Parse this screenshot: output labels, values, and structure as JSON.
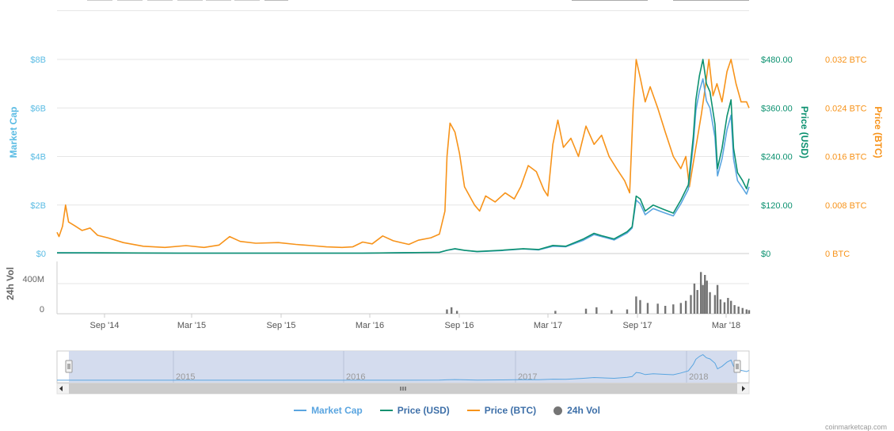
{
  "colors": {
    "market_cap": "#5aa5e0",
    "price_usd": "#0c9170",
    "price_btc": "#f7931a",
    "volume": "#757575",
    "axis_mc_label": "#5bbce4",
    "grid": "#e6e6e6",
    "navigator_fill": "#cfd8ec"
  },
  "chart_data": {
    "type": "line",
    "title": "",
    "x_ticks": [
      "Sep '14",
      "Mar '15",
      "Sep '15",
      "Mar '16",
      "Sep '16",
      "Mar '17",
      "Sep '17",
      "Mar '18"
    ],
    "y_axes": {
      "market_cap": {
        "label": "Market Cap",
        "ticks": [
          "$0",
          "$2B",
          "$4B",
          "$6B",
          "$8B"
        ],
        "range": [
          0,
          8000000000
        ]
      },
      "price_usd": {
        "label": "Price (USD)",
        "ticks": [
          "$0",
          "$120.00",
          "$240.00",
          "$360.00",
          "$480.00"
        ],
        "range": [
          0,
          480
        ]
      },
      "price_btc": {
        "label": "Price (BTC)",
        "ticks": [
          "0 BTC",
          "0.008 BTC",
          "0.016 BTC",
          "0.024 BTC",
          "0.032 BTC"
        ],
        "range": [
          0,
          0.032
        ]
      },
      "volume": {
        "label": "24h Vol",
        "ticks": [
          "0",
          "400M"
        ],
        "range": [
          0,
          800000000
        ]
      }
    },
    "x_range": [
      "2014-07-01",
      "2018-04-10"
    ],
    "series": [
      {
        "name": "Price (BTC)",
        "axis": "price_btc",
        "points": [
          [
            "2014-07-01",
            0.0035
          ],
          [
            "2014-07-05",
            0.0028
          ],
          [
            "2014-07-12",
            0.0045
          ],
          [
            "2014-07-18",
            0.008
          ],
          [
            "2014-07-24",
            0.0052
          ],
          [
            "2014-08-05",
            0.0046
          ],
          [
            "2014-08-20",
            0.0038
          ],
          [
            "2014-09-05",
            0.0042
          ],
          [
            "2014-09-20",
            0.003
          ],
          [
            "2014-10-10",
            0.0026
          ],
          [
            "2014-11-10",
            0.0018
          ],
          [
            "2014-12-20",
            0.0012
          ],
          [
            "2015-02-01",
            0.001
          ],
          [
            "2015-03-15",
            0.0013
          ],
          [
            "2015-04-20",
            0.001
          ],
          [
            "2015-05-20",
            0.0014
          ],
          [
            "2015-06-10",
            0.0028
          ],
          [
            "2015-07-01",
            0.002
          ],
          [
            "2015-08-01",
            0.0017
          ],
          [
            "2015-09-15",
            0.0018
          ],
          [
            "2015-10-20",
            0.0015
          ],
          [
            "2015-11-20",
            0.0013
          ],
          [
            "2015-12-20",
            0.0011
          ],
          [
            "2016-01-20",
            0.001
          ],
          [
            "2016-02-10",
            0.0011
          ],
          [
            "2016-03-01",
            0.0019
          ],
          [
            "2016-03-20",
            0.0016
          ],
          [
            "2016-04-10",
            0.0029
          ],
          [
            "2016-05-01",
            0.0021
          ],
          [
            "2016-06-01",
            0.0015
          ],
          [
            "2016-06-20",
            0.0022
          ],
          [
            "2016-07-15",
            0.0026
          ],
          [
            "2016-08-01",
            0.0032
          ],
          [
            "2016-08-12",
            0.007
          ],
          [
            "2016-08-16",
            0.016
          ],
          [
            "2016-08-22",
            0.0215
          ],
          [
            "2016-09-01",
            0.02
          ],
          [
            "2016-09-10",
            0.0165
          ],
          [
            "2016-09-20",
            0.011
          ],
          [
            "2016-10-10",
            0.008
          ],
          [
            "2016-10-20",
            0.007
          ],
          [
            "2016-11-01",
            0.0095
          ],
          [
            "2016-11-20",
            0.0085
          ],
          [
            "2016-12-10",
            0.01
          ],
          [
            "2016-12-28",
            0.009
          ],
          [
            "2017-01-10",
            0.011
          ],
          [
            "2017-01-25",
            0.0145
          ],
          [
            "2017-02-10",
            0.0135
          ],
          [
            "2017-02-25",
            0.0105
          ],
          [
            "2017-03-05",
            0.0095
          ],
          [
            "2017-03-15",
            0.018
          ],
          [
            "2017-03-25",
            0.022
          ],
          [
            "2017-04-05",
            0.0175
          ],
          [
            "2017-04-20",
            0.019
          ],
          [
            "2017-05-05",
            0.016
          ],
          [
            "2017-05-20",
            0.021
          ],
          [
            "2017-06-05",
            0.018
          ],
          [
            "2017-06-20",
            0.0195
          ],
          [
            "2017-07-05",
            0.016
          ],
          [
            "2017-07-20",
            0.014
          ],
          [
            "2017-08-05",
            0.012
          ],
          [
            "2017-08-15",
            0.01
          ],
          [
            "2017-08-22",
            0.024
          ],
          [
            "2017-08-28",
            0.032
          ],
          [
            "2017-09-05",
            0.029
          ],
          [
            "2017-09-15",
            0.025
          ],
          [
            "2017-09-25",
            0.0275
          ],
          [
            "2017-10-10",
            0.024
          ],
          [
            "2017-10-25",
            0.02
          ],
          [
            "2017-11-10",
            0.016
          ],
          [
            "2017-11-25",
            0.014
          ],
          [
            "2017-12-05",
            0.016
          ],
          [
            "2017-12-12",
            0.011
          ],
          [
            "2017-12-20",
            0.015
          ],
          [
            "2017-12-28",
            0.019
          ],
          [
            "2018-01-05",
            0.023
          ],
          [
            "2018-01-12",
            0.027
          ],
          [
            "2018-01-20",
            0.032
          ],
          [
            "2018-01-28",
            0.026
          ],
          [
            "2018-02-05",
            0.028
          ],
          [
            "2018-02-15",
            0.025
          ],
          [
            "2018-02-25",
            0.03
          ],
          [
            "2018-03-05",
            0.032
          ],
          [
            "2018-03-15",
            0.028
          ],
          [
            "2018-03-25",
            0.025
          ],
          [
            "2018-04-05",
            0.025
          ],
          [
            "2018-04-10",
            0.024
          ]
        ]
      },
      {
        "name": "Price (USD)",
        "axis": "price_usd",
        "points": [
          [
            "2014-07-01",
            2
          ],
          [
            "2014-09-01",
            2
          ],
          [
            "2015-03-01",
            1
          ],
          [
            "2015-09-01",
            1
          ],
          [
            "2016-03-01",
            1
          ],
          [
            "2016-08-01",
            3
          ],
          [
            "2016-08-16",
            8
          ],
          [
            "2016-09-01",
            12
          ],
          [
            "2016-09-20",
            8
          ],
          [
            "2016-10-15",
            5
          ],
          [
            "2016-12-01",
            8
          ],
          [
            "2017-01-15",
            12
          ],
          [
            "2017-02-15",
            10
          ],
          [
            "2017-03-15",
            20
          ],
          [
            "2017-04-10",
            18
          ],
          [
            "2017-05-15",
            36
          ],
          [
            "2017-06-05",
            50
          ],
          [
            "2017-06-20",
            44
          ],
          [
            "2017-07-15",
            36
          ],
          [
            "2017-08-10",
            54
          ],
          [
            "2017-08-20",
            66
          ],
          [
            "2017-08-28",
            142
          ],
          [
            "2017-09-05",
            135
          ],
          [
            "2017-09-15",
            105
          ],
          [
            "2017-10-01",
            120
          ],
          [
            "2017-10-20",
            110
          ],
          [
            "2017-11-10",
            100
          ],
          [
            "2017-11-25",
            132
          ],
          [
            "2017-12-10",
            170
          ],
          [
            "2017-12-20",
            290
          ],
          [
            "2017-12-25",
            380
          ],
          [
            "2018-01-01",
            440
          ],
          [
            "2018-01-08",
            480
          ],
          [
            "2018-01-15",
            420
          ],
          [
            "2018-01-22",
            400
          ],
          [
            "2018-02-01",
            320
          ],
          [
            "2018-02-06",
            210
          ],
          [
            "2018-02-15",
            260
          ],
          [
            "2018-02-25",
            340
          ],
          [
            "2018-03-05",
            380
          ],
          [
            "2018-03-10",
            260
          ],
          [
            "2018-03-18",
            200
          ],
          [
            "2018-03-28",
            180
          ],
          [
            "2018-04-05",
            160
          ],
          [
            "2018-04-10",
            185
          ]
        ]
      },
      {
        "name": "Market Cap",
        "axis": "market_cap",
        "points": [
          [
            "2014-07-01",
            30000000
          ],
          [
            "2015-03-01",
            15000000
          ],
          [
            "2016-03-01",
            15000000
          ],
          [
            "2016-08-01",
            45000000
          ],
          [
            "2016-08-16",
            130000000
          ],
          [
            "2016-09-01",
            190000000
          ],
          [
            "2016-09-20",
            130000000
          ],
          [
            "2016-10-15",
            75000000
          ],
          [
            "2016-12-01",
            120000000
          ],
          [
            "2017-01-15",
            190000000
          ],
          [
            "2017-02-15",
            150000000
          ],
          [
            "2017-03-15",
            300000000
          ],
          [
            "2017-04-10",
            280000000
          ],
          [
            "2017-05-15",
            550000000
          ],
          [
            "2017-06-05",
            780000000
          ],
          [
            "2017-06-20",
            700000000
          ],
          [
            "2017-07-15",
            560000000
          ],
          [
            "2017-08-10",
            850000000
          ],
          [
            "2017-08-20",
            1050000000
          ],
          [
            "2017-08-28",
            2200000000
          ],
          [
            "2017-09-05",
            2050000000
          ],
          [
            "2017-09-15",
            1600000000
          ],
          [
            "2017-10-01",
            1850000000
          ],
          [
            "2017-10-20",
            1700000000
          ],
          [
            "2017-11-10",
            1550000000
          ],
          [
            "2017-11-25",
            2050000000
          ],
          [
            "2017-12-10",
            2650000000
          ],
          [
            "2017-12-20",
            4500000000
          ],
          [
            "2017-12-25",
            5900000000
          ],
          [
            "2018-01-01",
            6700000000
          ],
          [
            "2018-01-08",
            7200000000
          ],
          [
            "2018-01-15",
            6300000000
          ],
          [
            "2018-01-22",
            6000000000
          ],
          [
            "2018-02-01",
            4800000000
          ],
          [
            "2018-02-06",
            3200000000
          ],
          [
            "2018-02-15",
            3900000000
          ],
          [
            "2018-02-25",
            5100000000
          ],
          [
            "2018-03-05",
            5700000000
          ],
          [
            "2018-03-10",
            3900000000
          ],
          [
            "2018-03-18",
            3000000000
          ],
          [
            "2018-03-28",
            2700000000
          ],
          [
            "2018-04-05",
            2450000000
          ],
          [
            "2018-04-10",
            2750000000
          ]
        ]
      },
      {
        "name": "24h Vol",
        "axis": "volume",
        "type": "column",
        "points": [
          [
            "2016-08-16",
            60000000
          ],
          [
            "2016-08-25",
            90000000
          ],
          [
            "2016-09-05",
            40000000
          ],
          [
            "2017-03-20",
            40000000
          ],
          [
            "2017-05-20",
            70000000
          ],
          [
            "2017-06-10",
            90000000
          ],
          [
            "2017-07-10",
            50000000
          ],
          [
            "2017-08-10",
            60000000
          ],
          [
            "2017-08-28",
            240000000
          ],
          [
            "2017-09-05",
            190000000
          ],
          [
            "2017-09-20",
            150000000
          ],
          [
            "2017-10-10",
            140000000
          ],
          [
            "2017-10-25",
            110000000
          ],
          [
            "2017-11-10",
            130000000
          ],
          [
            "2017-11-25",
            150000000
          ],
          [
            "2017-12-05",
            180000000
          ],
          [
            "2017-12-15",
            260000000
          ],
          [
            "2017-12-22",
            420000000
          ],
          [
            "2017-12-28",
            330000000
          ],
          [
            "2018-01-04",
            580000000
          ],
          [
            "2018-01-08",
            400000000
          ],
          [
            "2018-01-12",
            540000000
          ],
          [
            "2018-01-16",
            460000000
          ],
          [
            "2018-01-22",
            300000000
          ],
          [
            "2018-02-01",
            260000000
          ],
          [
            "2018-02-06",
            400000000
          ],
          [
            "2018-02-12",
            200000000
          ],
          [
            "2018-02-20",
            160000000
          ],
          [
            "2018-02-27",
            220000000
          ],
          [
            "2018-03-05",
            180000000
          ],
          [
            "2018-03-12",
            120000000
          ],
          [
            "2018-03-20",
            100000000
          ],
          [
            "2018-03-28",
            80000000
          ],
          [
            "2018-04-05",
            60000000
          ],
          [
            "2018-04-10",
            50000000
          ]
        ]
      }
    ],
    "navigator": {
      "year_labels": [
        "2015",
        "2016",
        "2017",
        "2018"
      ]
    },
    "legend": {
      "placement": "bottom-center",
      "items": [
        {
          "label": "Market Cap",
          "key": "market_cap",
          "shape": "line"
        },
        {
          "label": "Price (USD)",
          "key": "price_usd",
          "shape": "line"
        },
        {
          "label": "Price (BTC)",
          "key": "price_btc",
          "shape": "line"
        },
        {
          "label": "24h Vol",
          "key": "volume",
          "shape": "dot"
        }
      ]
    },
    "grid": true
  },
  "credits": "coinmarketcap.com"
}
